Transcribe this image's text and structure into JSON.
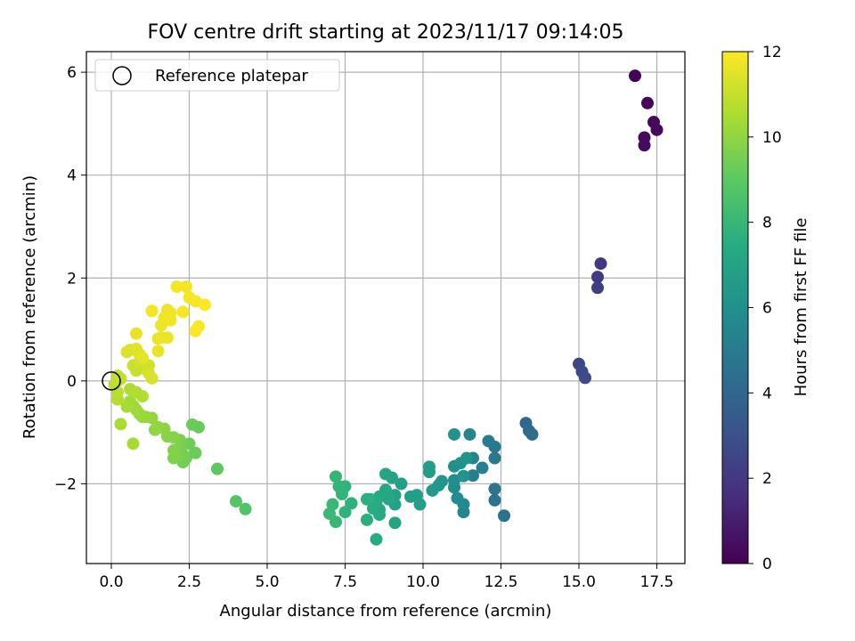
{
  "chart_data": {
    "type": "scatter",
    "title": "FOV centre drift starting at 2023/11/17 09:14:05",
    "xlabel": "Angular distance from reference (arcmin)",
    "ylabel": "Rotation from reference (arcmin)",
    "xlim": [
      -0.8,
      18.4
    ],
    "ylim": [
      -3.55,
      6.4
    ],
    "xticks": [
      0.0,
      2.5,
      5.0,
      7.5,
      10.0,
      12.5,
      15.0,
      17.5
    ],
    "xtick_labels": [
      "0.0",
      "2.5",
      "5.0",
      "7.5",
      "10.0",
      "12.5",
      "15.0",
      "17.5"
    ],
    "yticks": [
      -2,
      0,
      2,
      4,
      6
    ],
    "ytick_labels": [
      "−2",
      "0",
      "2",
      "4",
      "6"
    ],
    "grid": true,
    "legend": {
      "placement": "upper-left",
      "entries": [
        "Reference platepar"
      ]
    },
    "reference_point": {
      "x": 0,
      "y": 0
    },
    "colorbar": {
      "label": "Hours from first FF file",
      "range": [
        0,
        12
      ],
      "ticks": [
        0,
        2,
        4,
        6,
        8,
        10,
        12
      ],
      "tick_labels": [
        "0",
        "2",
        "4",
        "6",
        "8",
        "10",
        "12"
      ],
      "colormap": "viridis"
    },
    "points": [
      {
        "x": 16.8,
        "y": 5.93,
        "h": 0.1
      },
      {
        "x": 17.2,
        "y": 5.4,
        "h": 0.2
      },
      {
        "x": 17.4,
        "y": 5.03,
        "h": 0.25
      },
      {
        "x": 17.5,
        "y": 4.88,
        "h": 0.3
      },
      {
        "x": 17.1,
        "y": 4.73,
        "h": 0.35
      },
      {
        "x": 17.1,
        "y": 4.58,
        "h": 0.4
      },
      {
        "x": 15.7,
        "y": 2.28,
        "h": 2.0
      },
      {
        "x": 15.6,
        "y": 2.02,
        "h": 2.1
      },
      {
        "x": 15.6,
        "y": 1.81,
        "h": 2.2
      },
      {
        "x": 15.0,
        "y": 0.33,
        "h": 2.6
      },
      {
        "x": 15.1,
        "y": 0.18,
        "h": 2.7
      },
      {
        "x": 15.2,
        "y": 0.06,
        "h": 2.8
      },
      {
        "x": 13.3,
        "y": -0.82,
        "h": 4.0
      },
      {
        "x": 13.4,
        "y": -0.97,
        "h": 4.1
      },
      {
        "x": 13.5,
        "y": -1.04,
        "h": 4.2
      },
      {
        "x": 12.6,
        "y": -2.62,
        "h": 4.5
      },
      {
        "x": 12.3,
        "y": -2.32,
        "h": 4.6
      },
      {
        "x": 12.3,
        "y": -2.1,
        "h": 4.7
      },
      {
        "x": 12.3,
        "y": -1.5,
        "h": 4.8
      },
      {
        "x": 12.3,
        "y": -1.28,
        "h": 4.9
      },
      {
        "x": 12.1,
        "y": -1.17,
        "h": 5.0
      },
      {
        "x": 11.9,
        "y": -1.69,
        "h": 5.1
      },
      {
        "x": 11.6,
        "y": -1.84,
        "h": 5.2
      },
      {
        "x": 11.6,
        "y": -1.5,
        "h": 5.3
      },
      {
        "x": 11.5,
        "y": -1.04,
        "h": 5.4
      },
      {
        "x": 11.3,
        "y": -2.55,
        "h": 5.5
      },
      {
        "x": 11.3,
        "y": -2.4,
        "h": 5.6
      },
      {
        "x": 11.1,
        "y": -2.28,
        "h": 5.7
      },
      {
        "x": 11.0,
        "y": -2.07,
        "h": 5.8
      },
      {
        "x": 11.0,
        "y": -1.93,
        "h": 5.9
      },
      {
        "x": 11.0,
        "y": -1.66,
        "h": 6.0
      },
      {
        "x": 11.0,
        "y": -1.04,
        "h": 6.1
      },
      {
        "x": 11.2,
        "y": -1.6,
        "h": 6.15
      },
      {
        "x": 11.3,
        "y": -1.85,
        "h": 6.2
      },
      {
        "x": 11.4,
        "y": -1.5,
        "h": 6.25
      },
      {
        "x": 10.6,
        "y": -1.95,
        "h": 6.3
      },
      {
        "x": 10.5,
        "y": -2.03,
        "h": 6.4
      },
      {
        "x": 10.3,
        "y": -2.13,
        "h": 6.5
      },
      {
        "x": 10.2,
        "y": -1.67,
        "h": 6.6
      },
      {
        "x": 10.2,
        "y": -1.77,
        "h": 6.65
      },
      {
        "x": 9.9,
        "y": -2.4,
        "h": 6.7
      },
      {
        "x": 9.8,
        "y": -2.22,
        "h": 6.75
      },
      {
        "x": 9.6,
        "y": -2.25,
        "h": 6.8
      },
      {
        "x": 9.3,
        "y": -2.0,
        "h": 6.85
      },
      {
        "x": 9.1,
        "y": -2.4,
        "h": 6.9
      },
      {
        "x": 9.1,
        "y": -2.22,
        "h": 6.95
      },
      {
        "x": 9.1,
        "y": -2.76,
        "h": 7.0
      },
      {
        "x": 9.0,
        "y": -1.88,
        "h": 7.05
      },
      {
        "x": 8.8,
        "y": -1.81,
        "h": 7.1
      },
      {
        "x": 8.9,
        "y": -2.3,
        "h": 7.15
      },
      {
        "x": 8.8,
        "y": -2.12,
        "h": 7.2
      },
      {
        "x": 8.6,
        "y": -2.5,
        "h": 7.25
      },
      {
        "x": 8.6,
        "y": -2.25,
        "h": 7.3
      },
      {
        "x": 8.6,
        "y": -2.6,
        "h": 7.35
      },
      {
        "x": 8.5,
        "y": -3.08,
        "h": 7.4
      },
      {
        "x": 8.5,
        "y": -2.37,
        "h": 7.45
      },
      {
        "x": 8.4,
        "y": -2.48,
        "h": 7.5
      },
      {
        "x": 8.3,
        "y": -2.3,
        "h": 7.55
      },
      {
        "x": 8.2,
        "y": -2.7,
        "h": 7.6
      },
      {
        "x": 8.2,
        "y": -2.3,
        "h": 7.65
      },
      {
        "x": 7.7,
        "y": -2.38,
        "h": 7.7
      },
      {
        "x": 7.5,
        "y": -2.55,
        "h": 7.75
      },
      {
        "x": 7.5,
        "y": -2.05,
        "h": 7.8
      },
      {
        "x": 7.4,
        "y": -2.2,
        "h": 7.85
      },
      {
        "x": 7.3,
        "y": -2.05,
        "h": 7.9
      },
      {
        "x": 7.2,
        "y": -1.86,
        "h": 7.95
      },
      {
        "x": 7.2,
        "y": -2.74,
        "h": 8.0
      },
      {
        "x": 7.1,
        "y": -2.4,
        "h": 8.05
      },
      {
        "x": 7.0,
        "y": -2.58,
        "h": 8.1
      },
      {
        "x": 4.3,
        "y": -2.49,
        "h": 8.7
      },
      {
        "x": 4.0,
        "y": -2.34,
        "h": 8.8
      },
      {
        "x": 3.4,
        "y": -1.71,
        "h": 9.0
      },
      {
        "x": 2.8,
        "y": -0.9,
        "h": 9.2
      },
      {
        "x": 2.6,
        "y": -0.85,
        "h": 9.25
      },
      {
        "x": 2.7,
        "y": -1.4,
        "h": 9.3
      },
      {
        "x": 2.5,
        "y": -1.22,
        "h": 9.35
      },
      {
        "x": 2.4,
        "y": -1.5,
        "h": 9.4
      },
      {
        "x": 2.3,
        "y": -1.58,
        "h": 9.45
      },
      {
        "x": 2.3,
        "y": -1.43,
        "h": 9.5
      },
      {
        "x": 2.2,
        "y": -1.3,
        "h": 9.55
      },
      {
        "x": 2.2,
        "y": -1.15,
        "h": 9.6
      },
      {
        "x": 2.1,
        "y": -1.45,
        "h": 9.65
      },
      {
        "x": 2.0,
        "y": -1.5,
        "h": 9.7
      },
      {
        "x": 2.0,
        "y": -1.35,
        "h": 9.75
      },
      {
        "x": 2.0,
        "y": -1.1,
        "h": 9.8
      },
      {
        "x": 1.8,
        "y": -1.08,
        "h": 9.85
      },
      {
        "x": 1.7,
        "y": -0.93,
        "h": 9.9
      },
      {
        "x": 1.5,
        "y": -0.9,
        "h": 9.95
      },
      {
        "x": 1.4,
        "y": -0.95,
        "h": 10.0
      },
      {
        "x": 1.3,
        "y": -0.72,
        "h": 10.05
      },
      {
        "x": 1.1,
        "y": -0.7,
        "h": 10.1
      },
      {
        "x": 1.0,
        "y": -0.7,
        "h": 10.15
      },
      {
        "x": 0.9,
        "y": -0.64,
        "h": 10.2
      },
      {
        "x": 0.8,
        "y": -0.56,
        "h": 10.25
      },
      {
        "x": 0.7,
        "y": -0.48,
        "h": 10.3
      },
      {
        "x": 0.6,
        "y": -0.4,
        "h": 10.35
      },
      {
        "x": 0.5,
        "y": -0.5,
        "h": 10.4
      },
      {
        "x": 0.7,
        "y": -1.22,
        "h": 10.45
      },
      {
        "x": 0.3,
        "y": -0.84,
        "h": 10.5
      },
      {
        "x": 0.6,
        "y": -0.16,
        "h": 10.55
      },
      {
        "x": 0.8,
        "y": -0.22,
        "h": 10.6
      },
      {
        "x": 1.0,
        "y": -0.3,
        "h": 10.65
      },
      {
        "x": 0.2,
        "y": -0.36,
        "h": 10.7
      },
      {
        "x": 0.2,
        "y": -0.22,
        "h": 10.75
      },
      {
        "x": 0.1,
        "y": -0.07,
        "h": 10.8
      },
      {
        "x": 0.2,
        "y": 0.0,
        "h": 10.85
      },
      {
        "x": 0.3,
        "y": 0.04,
        "h": 10.9
      },
      {
        "x": 0.2,
        "y": 0.1,
        "h": 10.95
      },
      {
        "x": 0.7,
        "y": 0.3,
        "h": 11.0
      },
      {
        "x": 0.8,
        "y": 0.2,
        "h": 11.05
      },
      {
        "x": 1.0,
        "y": 0.25,
        "h": 11.1
      },
      {
        "x": 0.9,
        "y": 0.37,
        "h": 11.15
      },
      {
        "x": 1.2,
        "y": 0.3,
        "h": 11.2
      },
      {
        "x": 1.2,
        "y": 0.15,
        "h": 11.25
      },
      {
        "x": 1.3,
        "y": 0.05,
        "h": 11.3
      },
      {
        "x": 0.6,
        "y": 0.6,
        "h": 11.35
      },
      {
        "x": 0.5,
        "y": 0.56,
        "h": 11.4
      },
      {
        "x": 0.8,
        "y": 0.62,
        "h": 11.45
      },
      {
        "x": 0.9,
        "y": 0.52,
        "h": 11.5
      },
      {
        "x": 1.0,
        "y": 0.45,
        "h": 11.55
      },
      {
        "x": 0.8,
        "y": 0.92,
        "h": 11.6
      },
      {
        "x": 1.5,
        "y": 0.58,
        "h": 11.62
      },
      {
        "x": 1.5,
        "y": 0.82,
        "h": 11.64
      },
      {
        "x": 1.6,
        "y": 0.84,
        "h": 11.66
      },
      {
        "x": 1.8,
        "y": 0.84,
        "h": 11.68
      },
      {
        "x": 1.6,
        "y": 1.08,
        "h": 11.7
      },
      {
        "x": 1.7,
        "y": 1.23,
        "h": 11.72
      },
      {
        "x": 1.8,
        "y": 1.38,
        "h": 11.74
      },
      {
        "x": 1.9,
        "y": 1.32,
        "h": 11.76
      },
      {
        "x": 1.9,
        "y": 1.18,
        "h": 11.78
      },
      {
        "x": 1.3,
        "y": 1.36,
        "h": 11.8
      },
      {
        "x": 2.1,
        "y": 1.83,
        "h": 11.82
      },
      {
        "x": 2.4,
        "y": 1.83,
        "h": 11.84
      },
      {
        "x": 2.5,
        "y": 1.62,
        "h": 11.86
      },
      {
        "x": 2.7,
        "y": 1.55,
        "h": 11.88
      },
      {
        "x": 2.3,
        "y": 1.34,
        "h": 11.9
      },
      {
        "x": 2.8,
        "y": 1.06,
        "h": 11.92
      },
      {
        "x": 2.7,
        "y": 0.97,
        "h": 11.94
      },
      {
        "x": 3.0,
        "y": 1.48,
        "h": 11.96
      }
    ]
  }
}
